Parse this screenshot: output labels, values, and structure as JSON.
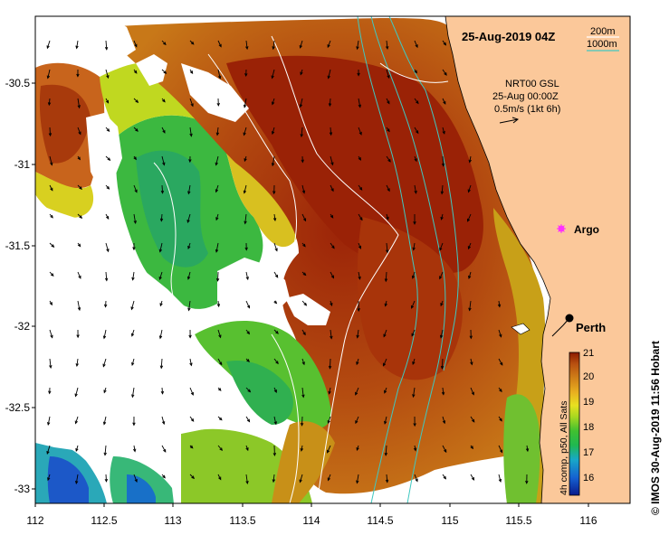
{
  "title": "25-Aug-2019 04Z",
  "depth_legend": [
    {
      "label": "200m",
      "color": "#ffffff"
    },
    {
      "label": "1000m",
      "color": "#40c8c0"
    }
  ],
  "current_info": {
    "line1": "NRT00 GSL",
    "line2": "25-Aug 00:00Z",
    "line3": "0.5m/s (1kt 6h)"
  },
  "places": [
    {
      "name": "Argo",
      "marker": "magenta-star",
      "lon": 115.83,
      "lat": -31.47
    },
    {
      "name": "Perth",
      "marker": "black-dot",
      "lon": 115.86,
      "lat": -31.95
    }
  ],
  "x_axis": {
    "ticks": [
      "112",
      "112.5",
      "113",
      "113.5",
      "114",
      "114.5",
      "115",
      "115.5",
      "116"
    ],
    "range": [
      112,
      116.3
    ]
  },
  "y_axis": {
    "ticks": [
      "-30.5",
      "-31",
      "-31.5",
      "-32",
      "-32.5",
      "-33"
    ],
    "range": [
      -33.1,
      -30.1
    ]
  },
  "colorbar": {
    "label": "4h comp, p50, All Sats",
    "ticks": [
      "21",
      "20",
      "19",
      "18",
      "17",
      "16"
    ],
    "range": [
      15.5,
      21
    ],
    "colors": [
      "#0a1a8c",
      "#1560d0",
      "#18a8c8",
      "#20b850",
      "#40c030",
      "#a8d820",
      "#e8e020",
      "#e8b020",
      "#d08018",
      "#b85010",
      "#a02808",
      "#8c1a00"
    ]
  },
  "credit": "© IMOS 30-Aug-2019 11:56 Hobart",
  "colors": {
    "land": "#fbc89a",
    "frame": "#000000"
  }
}
